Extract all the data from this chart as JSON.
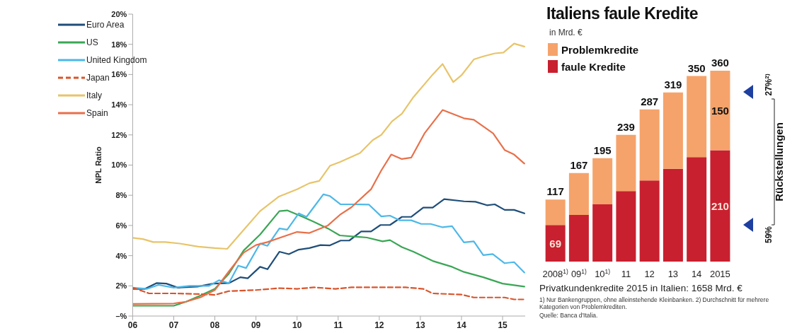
{
  "chart_data": [
    {
      "type": "line",
      "ylabel": "NPL Ratio",
      "xlim": [
        2006,
        2015.55
      ],
      "ylim": [
        0,
        20
      ],
      "xticks": [
        {
          "value": 2006,
          "label": "06"
        },
        {
          "value": 2007,
          "label": "07"
        },
        {
          "value": 2008,
          "label": "08"
        },
        {
          "value": 2009,
          "label": "09"
        },
        {
          "value": 2010,
          "label": "10"
        },
        {
          "value": 2011,
          "label": "11"
        },
        {
          "value": 2012,
          "label": "12"
        },
        {
          "value": 2013,
          "label": "13"
        },
        {
          "value": 2014,
          "label": "14"
        },
        {
          "value": 2015,
          "label": "15"
        }
      ],
      "yticks": [
        {
          "value": 0,
          "label": "–%"
        },
        {
          "value": 2,
          "label": "2%"
        },
        {
          "value": 4,
          "label": "4%"
        },
        {
          "value": 6,
          "label": "6%"
        },
        {
          "value": 8,
          "label": "8%"
        },
        {
          "value": 10,
          "label": "10%"
        },
        {
          "value": 12,
          "label": "12%"
        },
        {
          "value": 14,
          "label": "14%"
        },
        {
          "value": 16,
          "label": "16%"
        },
        {
          "value": 18,
          "label": "18%"
        },
        {
          "value": 20,
          "label": "20%"
        }
      ],
      "legend": "top left",
      "grid": false,
      "marker": "none",
      "series": [
        {
          "name": "Euro Area",
          "color": "#1f4e79",
          "line_style": "solid",
          "x": [
            2006,
            2006.3,
            2006.58,
            2006.82,
            2007.1,
            2007.58,
            2007.96,
            2008.34,
            2008.62,
            2008.8,
            2009.1,
            2009.28,
            2009.57,
            2009.8,
            2010.04,
            2010.3,
            2010.57,
            2010.8,
            2011.06,
            2011.27,
            2011.56,
            2011.8,
            2012.03,
            2012.26,
            2012.55,
            2012.78,
            2013.07,
            2013.3,
            2013.58,
            2014.06,
            2014.34,
            2014.62,
            2014.81,
            2015.05,
            2015.28,
            2015.53
          ],
          "values": [
            1.8,
            1.8,
            2.18,
            2.15,
            1.88,
            1.95,
            2.15,
            2.18,
            2.57,
            2.5,
            3.26,
            3.1,
            4.26,
            4.1,
            4.4,
            4.5,
            4.7,
            4.68,
            5.0,
            5.0,
            5.6,
            5.6,
            6.03,
            6.03,
            6.57,
            6.57,
            7.18,
            7.18,
            7.75,
            7.6,
            7.57,
            7.34,
            7.4,
            7.03,
            7.03,
            6.8
          ]
        },
        {
          "name": "US",
          "color": "#3aa655",
          "line_style": "solid",
          "x": [
            2006,
            2007,
            2007.3,
            2007.63,
            2008,
            2008.34,
            2008.7,
            2009.1,
            2009.57,
            2009.76,
            2010.14,
            2010.4,
            2010.75,
            2011.04,
            2011.7,
            2012.08,
            2012.26,
            2012.55,
            2012.83,
            2013.3,
            2013.77,
            2014.06,
            2014.53,
            2015.0,
            2015.53
          ],
          "values": [
            0.68,
            0.68,
            0.95,
            1.34,
            1.8,
            2.8,
            4.34,
            5.4,
            6.95,
            7.0,
            6.57,
            6.25,
            5.8,
            5.34,
            5.2,
            4.95,
            5.03,
            4.57,
            4.26,
            3.65,
            3.26,
            2.92,
            2.57,
            2.15,
            1.95
          ]
        },
        {
          "name": "United Kingdom",
          "color": "#4db8e8",
          "line_style": "solid",
          "x": [
            2006,
            2006.35,
            2006.63,
            2007,
            2007.39,
            2007.86,
            2008.1,
            2008.34,
            2008.57,
            2008.76,
            2009.1,
            2009.28,
            2009.57,
            2009.76,
            2010.04,
            2010.23,
            2010.42,
            2010.64,
            2010.8,
            2011.06,
            2011.37,
            2011.75,
            2012.05,
            2012.26,
            2012.5,
            2012.78,
            2013.02,
            2013.25,
            2013.54,
            2013.77,
            2014.06,
            2014.3,
            2014.53,
            2014.76,
            2015.05,
            2015.28,
            2015.53
          ],
          "values": [
            1.88,
            1.8,
            2.06,
            1.88,
            2.0,
            2.0,
            2.37,
            2.18,
            3.34,
            3.18,
            4.8,
            4.65,
            5.8,
            5.72,
            6.8,
            6.57,
            7.26,
            8.06,
            7.95,
            7.4,
            7.4,
            7.38,
            6.6,
            6.65,
            6.34,
            6.34,
            6.1,
            6.1,
            5.88,
            5.95,
            4.88,
            4.95,
            4.03,
            4.1,
            3.5,
            3.57,
            2.88
          ]
        },
        {
          "name": "Japan",
          "color": "#d9542b",
          "line_style": "dashed",
          "x": [
            2006,
            2006.4,
            2007,
            2007.67,
            2008,
            2008.34,
            2009,
            2009.57,
            2010,
            2010.42,
            2010.94,
            2011.32,
            2012.64,
            2013.07,
            2013.3,
            2014.0,
            2014.3,
            2015.05,
            2015.28,
            2015.53
          ],
          "values": [
            1.88,
            1.5,
            1.5,
            1.45,
            1.4,
            1.65,
            1.72,
            1.85,
            1.8,
            1.9,
            1.8,
            1.9,
            1.9,
            1.8,
            1.5,
            1.42,
            1.23,
            1.23,
            1.1,
            1.1
          ]
        },
        {
          "name": "Italy",
          "color": "#e8c46a",
          "line_style": "solid",
          "x": [
            2006,
            2006.25,
            2006.5,
            2006.8,
            2007.15,
            2007.6,
            2008,
            2008.3,
            2008.7,
            2009.1,
            2009.55,
            2010,
            2010.3,
            2010.54,
            2010.8,
            2011.04,
            2011.53,
            2011.84,
            2012.05,
            2012.31,
            2012.55,
            2012.83,
            2013.3,
            2013.54,
            2013.8,
            2014.0,
            2014.3,
            2014.53,
            2014.81,
            2015.02,
            2015.28,
            2015.53
          ],
          "values": [
            5.18,
            5.1,
            4.9,
            4.9,
            4.8,
            4.6,
            4.5,
            4.45,
            5.7,
            6.95,
            7.9,
            8.4,
            8.8,
            8.95,
            9.95,
            10.2,
            10.8,
            11.65,
            12.0,
            12.9,
            13.4,
            14.5,
            16.0,
            16.7,
            15.5,
            15.95,
            17.0,
            17.2,
            17.4,
            17.45,
            18.05,
            17.85
          ]
        },
        {
          "name": "Spain",
          "color": "#e8704a",
          "line_style": "solid",
          "x": [
            2006,
            2007,
            2007.3,
            2007.67,
            2008,
            2008.34,
            2008.7,
            2009,
            2009.28,
            2009.66,
            2010,
            2010.3,
            2010.75,
            2011.04,
            2011.32,
            2011.8,
            2012.05,
            2012.29,
            2012.55,
            2012.78,
            2013.1,
            2013.54,
            2014.06,
            2014.3,
            2014.77,
            2015.05,
            2015.28,
            2015.53
          ],
          "values": [
            0.8,
            0.83,
            0.95,
            1.26,
            1.72,
            2.95,
            4.2,
            4.7,
            4.9,
            5.26,
            5.57,
            5.5,
            6.0,
            6.7,
            7.2,
            8.4,
            9.65,
            10.7,
            10.4,
            10.5,
            12.1,
            13.65,
            13.1,
            13.0,
            12.1,
            11.0,
            10.7,
            10.1
          ]
        }
      ]
    },
    {
      "type": "bar",
      "title": "Italiens faule Kredite",
      "subtitle": "in Mrd. €",
      "stacked": true,
      "legend": "top left",
      "categories": [
        "2008$^{1)}$",
        "09$^{1)}$",
        "10$^{1)}$",
        "11",
        "12",
        "13",
        "14",
        "2015"
      ],
      "series": [
        {
          "name": "faule Kredite",
          "color": "#c8202f",
          "values": [
            69,
            88,
            108,
            133,
            153,
            175,
            197,
            210
          ],
          "value_labels": [
            "69",
            null,
            null,
            null,
            null,
            null,
            null,
            "210"
          ]
        },
        {
          "name": "Problemkredite",
          "color": "#f5a36a",
          "values": [
            48,
            79,
            87,
            106,
            134,
            144,
            153,
            150
          ],
          "value_labels": [
            null,
            null,
            null,
            null,
            null,
            null,
            null,
            "150"
          ]
        }
      ],
      "totals": [
        "117",
        "167",
        "195",
        "239",
        "287",
        "319",
        "350",
        "360"
      ],
      "annotations": [
        "Privatkundenkredite 2015 in Italien: 1658 Mrd. €",
        "1) Nur Bankengruppen, ohne alleinstehende Kleinbanken. 2) Durchschnitt für mehrere Kategorien von Problemkrediten.",
        "Quelle: Banca d'Italia.",
        "Rückstellungen",
        "27%$^{2)}$",
        "59%"
      ]
    }
  ]
}
